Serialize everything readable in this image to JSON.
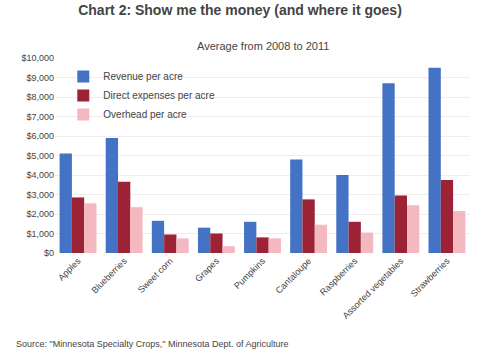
{
  "chart_data": {
    "type": "bar",
    "title": "Chart 2: Show me the money (and where it goes)",
    "subtitle": "Average from 2008 to 2011",
    "annotations": [
      "Source: \"Minnesota Specialty Crops,\" Minnesota Dept. of Agriculture"
    ],
    "categories": [
      "Apples",
      "Blueberries",
      "Sweet corn",
      "Grapes",
      "Pumpkins",
      "Cantaloupe",
      "Raspberries",
      "Assorted vegetables",
      "Strawberries"
    ],
    "series": [
      {
        "name": "Revenue per acre",
        "color": "#4472C4",
        "values": [
          5100,
          5900,
          1650,
          1300,
          1600,
          4800,
          4000,
          8700,
          9500
        ]
      },
      {
        "name": "Direct expenses per acre",
        "color": "#9B2335",
        "values": [
          2850,
          3650,
          950,
          1000,
          800,
          2750,
          1600,
          2950,
          3750
        ]
      },
      {
        "name": "Overhead per acre",
        "color": "#F4B8C1",
        "values": [
          2550,
          2350,
          750,
          350,
          750,
          1450,
          1050,
          2450,
          2150
        ]
      }
    ],
    "ylim": [
      0,
      10000
    ],
    "yticks": [
      {
        "value": 0,
        "label": "$0"
      },
      {
        "value": 1000,
        "label": "$1,000"
      },
      {
        "value": 2000,
        "label": "$2,000"
      },
      {
        "value": 3000,
        "label": "$3,000"
      },
      {
        "value": 4000,
        "label": "$4,000"
      },
      {
        "value": 5000,
        "label": "$5,000"
      },
      {
        "value": 6000,
        "label": "$6,000"
      },
      {
        "value": 7000,
        "label": "$7,000"
      },
      {
        "value": 8000,
        "label": "$8,000"
      },
      {
        "value": 9000,
        "label": "$9,000"
      },
      {
        "value": 10000,
        "label": "$10,000"
      }
    ],
    "grid": true,
    "legend": "upper left"
  }
}
